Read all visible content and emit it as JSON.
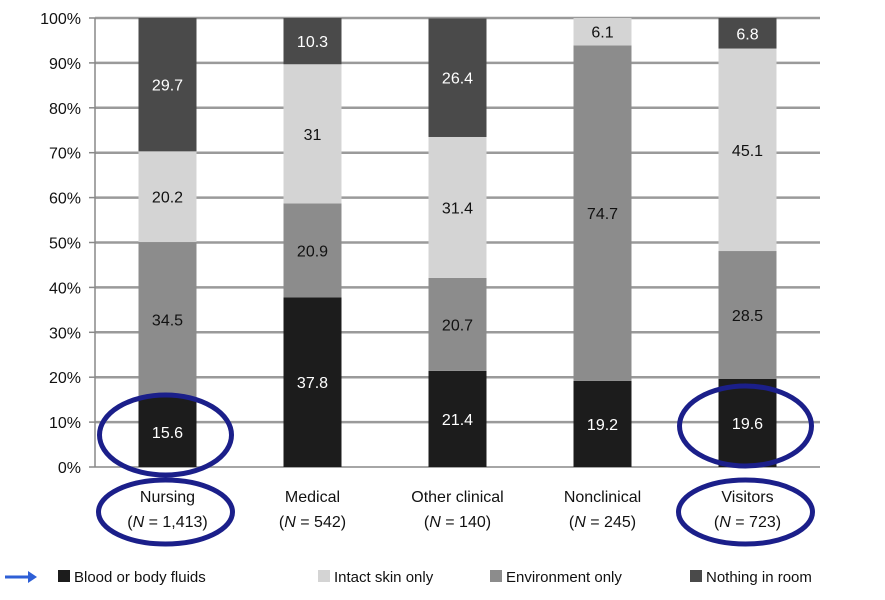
{
  "chart_data": {
    "type": "bar",
    "stacked": true,
    "orientation": "vertical",
    "ylim": [
      0,
      100
    ],
    "yticks": [
      "0%",
      "10%",
      "20%",
      "30%",
      "40%",
      "50%",
      "60%",
      "70%",
      "80%",
      "90%",
      "100%"
    ],
    "categories": [
      {
        "name": "Nursing",
        "n_prefix": "(",
        "n_letter": "N",
        "n_value": " = 1,413)"
      },
      {
        "name": "Medical",
        "n_prefix": "(",
        "n_letter": "N",
        "n_value": " = 542)"
      },
      {
        "name": "Other clinical",
        "n_prefix": "(",
        "n_letter": "N",
        "n_value": " = 140)"
      },
      {
        "name": "Nonclinical",
        "n_prefix": "(",
        "n_letter": "N",
        "n_value": " = 245)"
      },
      {
        "name": "Visitors",
        "n_prefix": "(",
        "n_letter": "N",
        "n_value": " = 723)"
      }
    ],
    "series": [
      {
        "name": "Blood or body fluids",
        "color": "#1c1c1c",
        "label_color": "#ffffff",
        "values": [
          15.6,
          37.8,
          21.4,
          19.2,
          19.6
        ],
        "labels": [
          "15.6",
          "37.8",
          "21.4",
          "19.2",
          "19.6"
        ]
      },
      {
        "name": "Environment only",
        "color": "#8c8c8c",
        "label_color": "#111111",
        "values": [
          34.5,
          20.9,
          20.7,
          74.7,
          28.5
        ],
        "labels": [
          "34.5",
          "20.9",
          "20.7",
          "74.7",
          "28.5"
        ]
      },
      {
        "name": "Intact skin only",
        "color": "#d4d4d4",
        "label_color": "#111111",
        "values": [
          20.2,
          31,
          31.4,
          6.1,
          45.1
        ],
        "labels": [
          "20.2",
          "31",
          "31.4",
          "6.1",
          "45.1"
        ]
      },
      {
        "name": "Nothing in room",
        "color": "#4a4a4a",
        "label_color": "#ffffff",
        "values": [
          29.7,
          10.3,
          26.4,
          0,
          6.8
        ],
        "labels": [
          "29.7",
          "10.3",
          "26.4",
          "",
          "6.8"
        ]
      }
    ],
    "legend": {
      "placement": "bottom",
      "entries": [
        "Blood or body fluids",
        "Intact skin only",
        "Environment only",
        "Nothing in room"
      ]
    },
    "grid": true,
    "annotations": {
      "ellipse_color": "#1b1f8a",
      "highlighted": [
        "Nursing",
        "Visitors"
      ],
      "arrow_color": "#2e5fd6"
    }
  }
}
